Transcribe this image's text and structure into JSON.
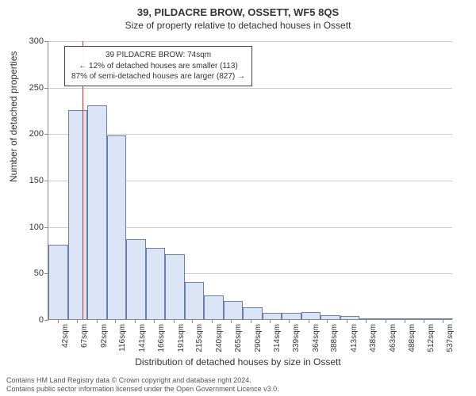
{
  "title": "39, PILDACRE BROW, OSSETT, WF5 8QS",
  "subtitle": "Size of property relative to detached houses in Ossett",
  "y_axis_label": "Number of detached properties",
  "x_axis_label": "Distribution of detached houses by size in Ossett",
  "chart": {
    "type": "histogram",
    "background_color": "#ffffff",
    "grid_color": "#cccccc",
    "axis_color": "#888888",
    "bar_fill": "#dbe4f5",
    "bar_stroke": "#6a7fa8",
    "marker_color": "#d03030",
    "ylim": [
      0,
      300
    ],
    "ytick_step": 50,
    "x_min": 30,
    "x_max": 550,
    "x_ticks": [
      42,
      67,
      92,
      116,
      141,
      166,
      191,
      215,
      240,
      265,
      290,
      314,
      339,
      364,
      388,
      413,
      438,
      463,
      488,
      512,
      537
    ],
    "x_tick_suffix": "sqm",
    "bars": [
      {
        "x0": 30,
        "x1": 55,
        "v": 80
      },
      {
        "x0": 55,
        "x1": 80,
        "v": 225
      },
      {
        "x0": 80,
        "x1": 105,
        "v": 230
      },
      {
        "x0": 105,
        "x1": 130,
        "v": 198
      },
      {
        "x0": 130,
        "x1": 155,
        "v": 86
      },
      {
        "x0": 155,
        "x1": 180,
        "v": 77
      },
      {
        "x0": 180,
        "x1": 205,
        "v": 70
      },
      {
        "x0": 205,
        "x1": 230,
        "v": 40
      },
      {
        "x0": 230,
        "x1": 255,
        "v": 26
      },
      {
        "x0": 255,
        "x1": 280,
        "v": 20
      },
      {
        "x0": 280,
        "x1": 305,
        "v": 13
      },
      {
        "x0": 305,
        "x1": 330,
        "v": 7
      },
      {
        "x0": 330,
        "x1": 355,
        "v": 7
      },
      {
        "x0": 355,
        "x1": 380,
        "v": 8
      },
      {
        "x0": 380,
        "x1": 405,
        "v": 4
      },
      {
        "x0": 405,
        "x1": 430,
        "v": 3
      },
      {
        "x0": 430,
        "x1": 455,
        "v": 0
      },
      {
        "x0": 455,
        "x1": 480,
        "v": 1
      },
      {
        "x0": 480,
        "x1": 505,
        "v": 0
      },
      {
        "x0": 505,
        "x1": 530,
        "v": 1
      },
      {
        "x0": 530,
        "x1": 550,
        "v": 1
      }
    ],
    "marker_x": 74
  },
  "annotation": {
    "line1": "39 PILDACRE BROW: 74sqm",
    "line2": "← 12% of detached houses are smaller (113)",
    "line3": "87% of semi-detached houses are larger (827) →"
  },
  "footer": {
    "line1": "Contains HM Land Registry data © Crown copyright and database right 2024.",
    "line2": "Contains public sector information licensed under the Open Government Licence v3.0."
  }
}
